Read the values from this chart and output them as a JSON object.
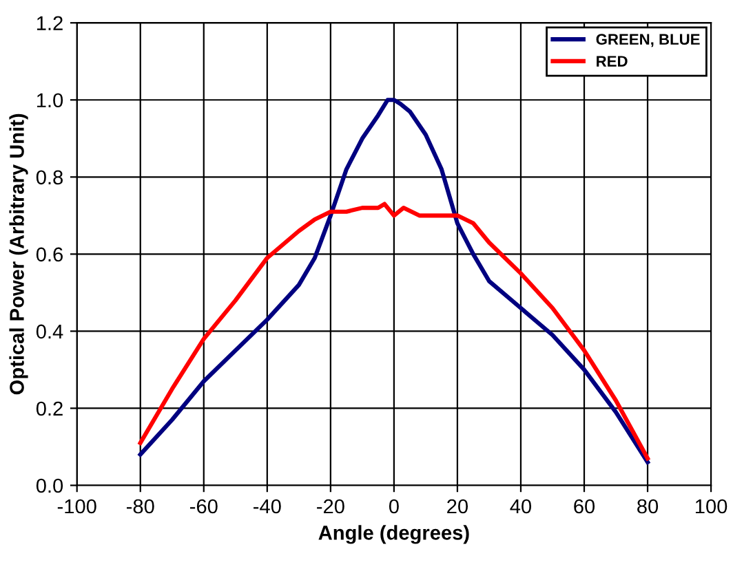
{
  "chart_data": {
    "type": "line",
    "xlabel": "Angle (degrees)",
    "ylabel": "Optical Power (Arbitrary Unit)",
    "xlim": [
      -100,
      100
    ],
    "xticks": [
      -100,
      -80,
      -60,
      -40,
      -20,
      0,
      20,
      40,
      60,
      80,
      100
    ],
    "ylim": [
      0,
      1.2
    ],
    "yticks": [
      {
        "value": 0,
        "label": "0.0"
      },
      {
        "value": 0.2,
        "label": "0.2"
      },
      {
        "value": 0.4,
        "label": "0.4"
      },
      {
        "value": 0.6,
        "label": "0.6"
      },
      {
        "value": 0.8,
        "label": "0.8"
      },
      {
        "value": 1.0,
        "label": "1.0"
      },
      {
        "value": 1.2,
        "label": "1.2"
      }
    ],
    "grid": true,
    "legend": "top right",
    "marker": "none",
    "line_style": "solid",
    "series": [
      {
        "name": "GREEN, BLUE",
        "color": "#000080",
        "x": [
          -80,
          -70,
          -60,
          -50,
          -40,
          -30,
          -25,
          -20,
          -15,
          -10,
          -5,
          -2,
          0,
          2,
          5,
          10,
          15,
          20,
          25,
          30,
          40,
          50,
          60,
          70,
          80
        ],
        "values": [
          0.08,
          0.17,
          0.27,
          0.35,
          0.43,
          0.52,
          0.59,
          0.7,
          0.82,
          0.9,
          0.96,
          1.0,
          1.0,
          0.99,
          0.97,
          0.91,
          0.82,
          0.68,
          0.6,
          0.53,
          0.46,
          0.39,
          0.3,
          0.19,
          0.06
        ]
      },
      {
        "name": "RED",
        "color": "#ff0000",
        "x": [
          -80,
          -70,
          -60,
          -50,
          -40,
          -30,
          -25,
          -20,
          -15,
          -10,
          -5,
          -3,
          0,
          3,
          8,
          15,
          20,
          25,
          30,
          40,
          50,
          60,
          70,
          80
        ],
        "values": [
          0.11,
          0.25,
          0.38,
          0.48,
          0.59,
          0.66,
          0.69,
          0.71,
          0.71,
          0.72,
          0.72,
          0.73,
          0.7,
          0.72,
          0.7,
          0.7,
          0.7,
          0.68,
          0.63,
          0.55,
          0.46,
          0.35,
          0.22,
          0.07
        ]
      }
    ]
  }
}
